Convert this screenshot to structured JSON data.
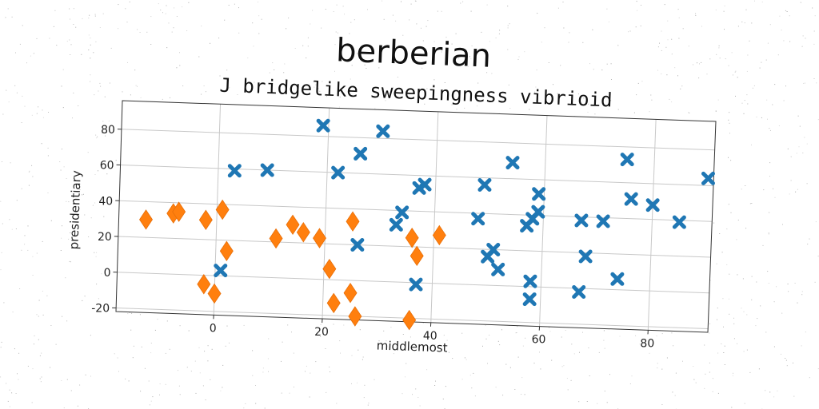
{
  "chart_data": {
    "type": "scatter",
    "title": "berberian",
    "subtitle": "J bridgelike sweepingness vibrioid",
    "xlabel": "middlemost",
    "ylabel": "presidentiary",
    "xlim": [
      -18,
      91
    ],
    "ylim": [
      -22,
      96
    ],
    "xticks": [
      0,
      20,
      40,
      60,
      80
    ],
    "yticks": [
      -20,
      0,
      20,
      40,
      60,
      80
    ],
    "grid": true,
    "series": [
      {
        "marker": "x",
        "color": "#1f77b4",
        "points": [
          [
            1,
            3
          ],
          [
            3,
            59
          ],
          [
            9,
            60
          ],
          [
            19,
            86
          ],
          [
            22,
            60
          ],
          [
            26,
            71
          ],
          [
            26,
            20
          ],
          [
            30,
            84
          ],
          [
            33,
            32
          ],
          [
            34,
            39
          ],
          [
            37,
            53
          ],
          [
            38,
            55
          ],
          [
            37,
            -1
          ],
          [
            48,
            37
          ],
          [
            49,
            56
          ],
          [
            50,
            16
          ],
          [
            51,
            20
          ],
          [
            52,
            9
          ],
          [
            54,
            69
          ],
          [
            57,
            34
          ],
          [
            58,
            38
          ],
          [
            59,
            52
          ],
          [
            59,
            42
          ],
          [
            58,
            3
          ],
          [
            58,
            -7
          ],
          [
            67,
            38
          ],
          [
            67,
            -2
          ],
          [
            68,
            18
          ],
          [
            71,
            38
          ],
          [
            74,
            6
          ],
          [
            75,
            73
          ],
          [
            76,
            51
          ],
          [
            80,
            48
          ],
          [
            85,
            39
          ],
          [
            90,
            64
          ]
        ]
      },
      {
        "marker": "diamond",
        "color": "#ff7f0e",
        "points": [
          [
            -13,
            30
          ],
          [
            -8,
            34
          ],
          [
            -7,
            35
          ],
          [
            -2,
            31
          ],
          [
            1,
            37
          ],
          [
            2,
            14
          ],
          [
            -2,
            -5
          ],
          [
            0,
            -10
          ],
          [
            11,
            22
          ],
          [
            14,
            30
          ],
          [
            16,
            26
          ],
          [
            19,
            23
          ],
          [
            21,
            6
          ],
          [
            22,
            -13
          ],
          [
            25,
            -7
          ],
          [
            26,
            -20
          ],
          [
            25,
            33
          ],
          [
            36,
            -21
          ],
          [
            36,
            25
          ],
          [
            37,
            15
          ],
          [
            41,
            27
          ]
        ]
      }
    ]
  }
}
